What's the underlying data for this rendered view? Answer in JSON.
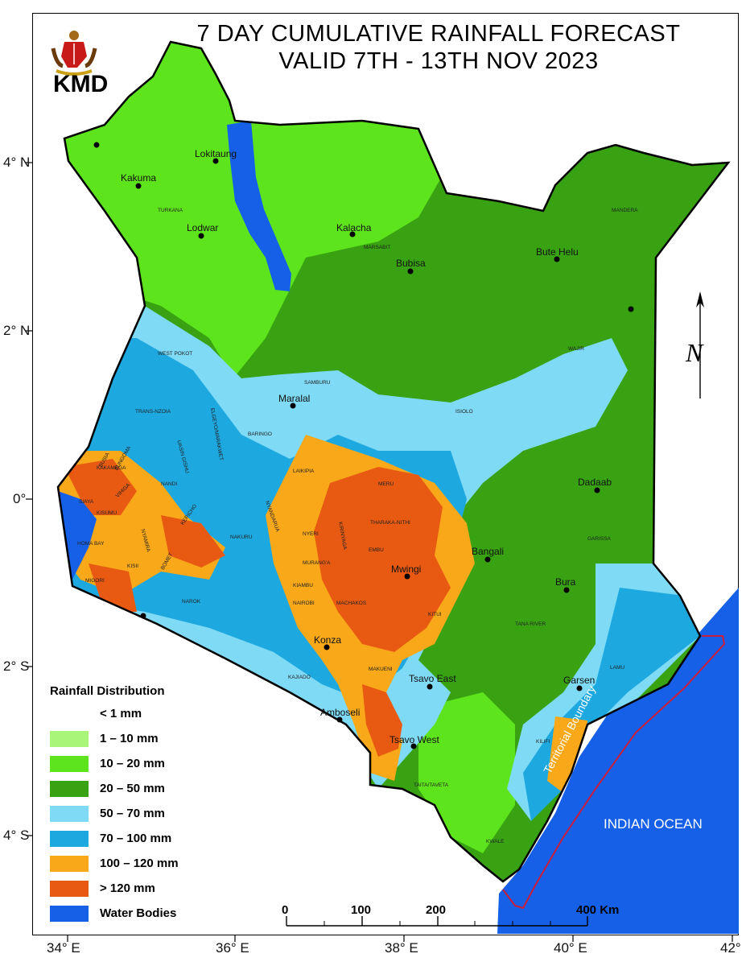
{
  "map": {
    "title_line1": "7 DAY CUMULATIVE RAINFALL FORECAST",
    "title_line2": "VALID 7TH - 13TH NOV 2023",
    "agency": "KMD",
    "north_symbol": "N",
    "ocean_label": "INDIAN OCEAN",
    "boundary_label": "Territorial Boundary"
  },
  "axes": {
    "x_labels": [
      "34° E",
      "36° E",
      "38° E",
      "40° E",
      "42°"
    ],
    "y_labels": [
      "4° N",
      "2° N",
      "0°",
      "2° S",
      "4° S"
    ]
  },
  "legend": {
    "title": "Rainfall Distribution",
    "items": [
      {
        "label": "< 1 mm",
        "color": "#ffffff"
      },
      {
        "label": "1 – 10 mm",
        "color": "#a8f57a"
      },
      {
        "label": "10 – 20 mm",
        "color": "#5ee41c"
      },
      {
        "label": "20 – 50 mm",
        "color": "#38a212"
      },
      {
        "label": "50 – 70 mm",
        "color": "#7fdaf6"
      },
      {
        "label": "70 – 100 mm",
        "color": "#1ea8e0"
      },
      {
        "label": "100 – 120 mm",
        "color": "#f8a818"
      },
      {
        "label": "> 120 mm",
        "color": "#e85a12"
      },
      {
        "label": "Water Bodies",
        "color": "#1660e8"
      }
    ]
  },
  "scale_bar": {
    "labels": [
      "0",
      "100",
      "200",
      "400 Km"
    ]
  },
  "places": [
    {
      "name": "Lokitaung"
    },
    {
      "name": "Kakuma"
    },
    {
      "name": "Lodwar"
    },
    {
      "name": "Kalacha"
    },
    {
      "name": "Bubisa"
    },
    {
      "name": "Bute Helu"
    },
    {
      "name": "Maralal"
    },
    {
      "name": "Dadaab"
    },
    {
      "name": "Bangali"
    },
    {
      "name": "Mwingi"
    },
    {
      "name": "Bura"
    },
    {
      "name": "Konza"
    },
    {
      "name": "Tsavo East"
    },
    {
      "name": "Garsen"
    },
    {
      "name": "Amboseli"
    },
    {
      "name": "Tsavo West"
    }
  ],
  "counties": [
    "TURKANA",
    "MARSABIT",
    "MANDERA",
    "WAJIR",
    "WEST POKOT",
    "SAMBURU",
    "TRANS-NZOIA",
    "ELGEYO/MARAKWET",
    "BARINGO",
    "ISIOLO",
    "BUSIA",
    "BUNGOMA",
    "KAKAMEGA",
    "UASIN GISHU",
    "LAIKIPIA",
    "MERU",
    "VIHIGA",
    "NANDI",
    "SIAYA",
    "KISUMU",
    "THARAKA-NITHI",
    "KERICHO",
    "NYANDARUA",
    "NAKURU",
    "NYERI",
    "KIRINYAGA",
    "EMBU",
    "GARISSA",
    "HOMA BAY",
    "NYAMIRA",
    "BOMET",
    "KISII",
    "MIGORI",
    "MURANG'A",
    "KIAMBU",
    "NAROK",
    "MACHAKOS",
    "NAIROBI",
    "KITUI",
    "TANA RIVER",
    "KAJIADO",
    "MAKUENI",
    "LAMU",
    "KILIFI",
    "TAITA/TAVETA",
    "KWALE"
  ]
}
